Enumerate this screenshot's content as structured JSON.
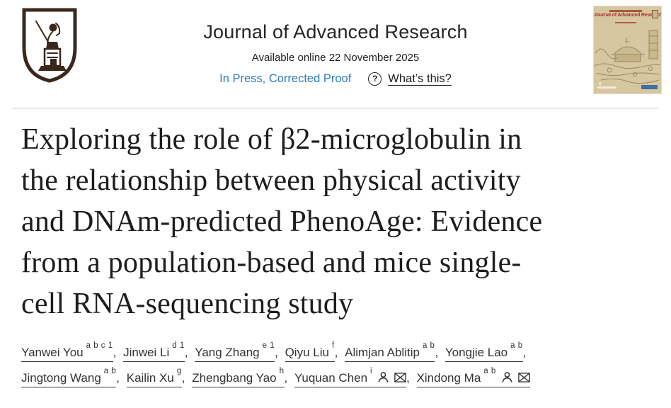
{
  "header": {
    "journal_title": "Journal of Advanced Research",
    "available_online": "Available online 22 November 2025",
    "in_press_label": "In Press, Corrected Proof",
    "help_icon": "?",
    "whats_this_label": "What’s this?",
    "link_color": "#2e7cba",
    "text_color": "#212121"
  },
  "cover": {
    "title": "Journal of Advanced Research",
    "background_color": "#d7c7a0",
    "title_color": "#a83428"
  },
  "article": {
    "title": "Exploring the role of β2-microglobulin in the relationship between physical activity and DNAm-predicted PhenoAge: Evidence from a population-based and mice single-cell RNA-sequencing study",
    "title_lines": [
      "Exploring the role of β2-microglobulin in",
      "the relationship between physical activity",
      "and DNAm-predicted PhenoAge: Evidence",
      "from a population-based and mice single-",
      "cell RNA-sequencing study"
    ]
  },
  "authors": {
    "rows": [
      [
        {
          "name": "Yanwei You",
          "sup": "a b c 1"
        },
        {
          "name": "Jinwei Li",
          "sup": "d 1"
        },
        {
          "name": "Yang Zhang",
          "sup": "e 1"
        },
        {
          "name": "Qiyu Liu",
          "sup": "f"
        },
        {
          "name": "Alimjan Ablitip",
          "sup": "a b"
        },
        {
          "name": "Yongjie Lao",
          "sup": "a b"
        }
      ],
      [
        {
          "name": "Jingtong Wang",
          "sup": "a b"
        },
        {
          "name": "Kailin Xu",
          "sup": "g"
        },
        {
          "name": "Zhengbang Yao",
          "sup": "h"
        },
        {
          "name": "Yuquan Chen",
          "sup": "i",
          "icons": [
            "person-icon",
            "envelope-icon"
          ]
        },
        {
          "name": "Xindong Ma",
          "sup": "a b",
          "icons": [
            "person-icon",
            "envelope-icon"
          ]
        }
      ]
    ]
  }
}
